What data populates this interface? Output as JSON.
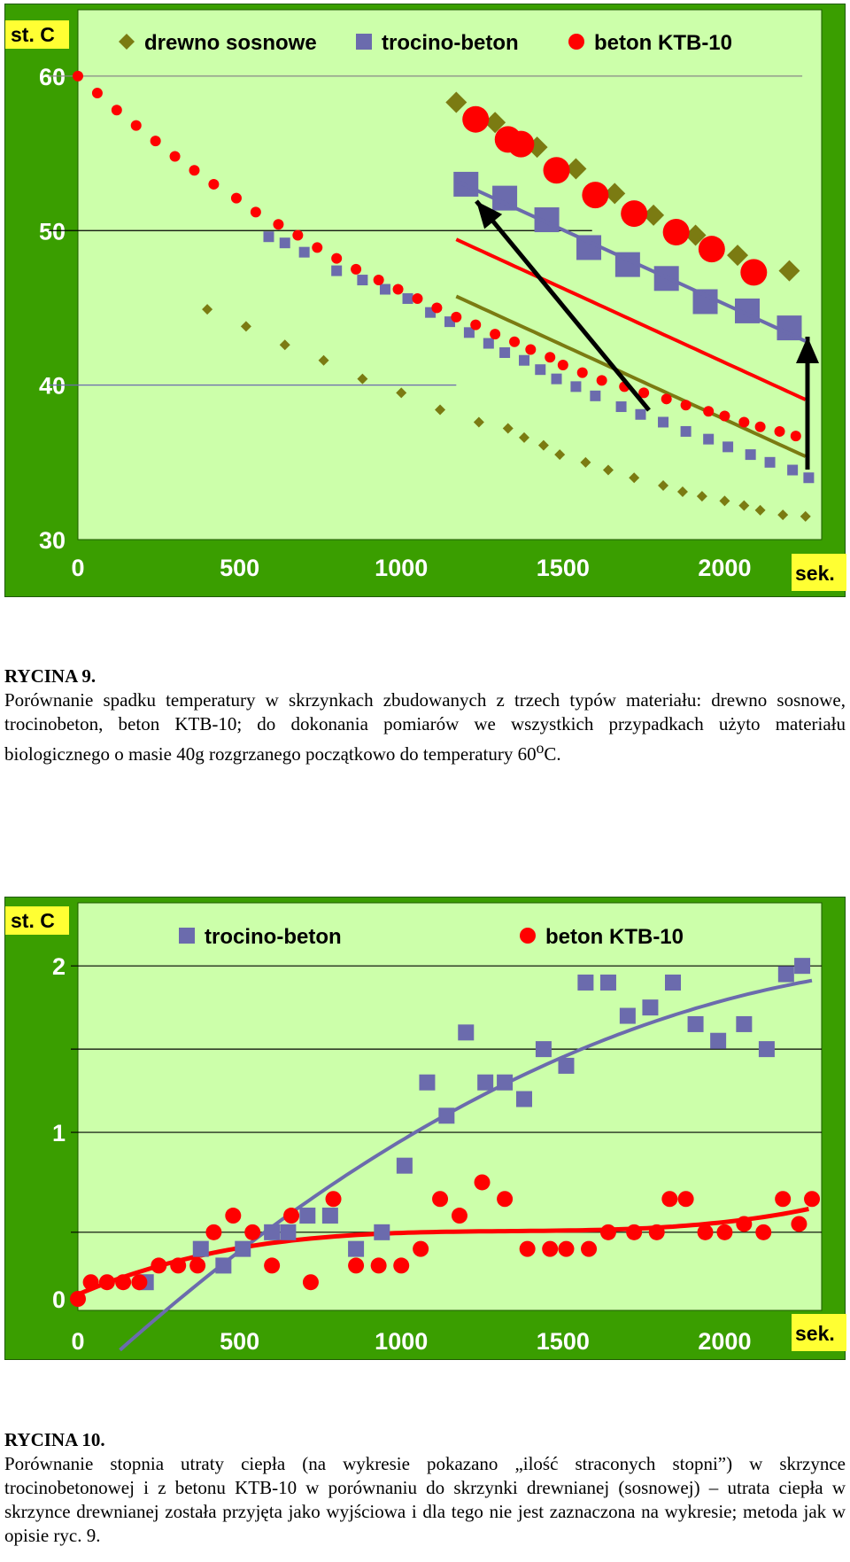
{
  "figures": [
    {
      "caption_title": "RYCINA 9.",
      "caption_pre": "Porównanie spadku temperatury w skrzynkach zbudowanych z trzech typów materiału: drewno sosnowe, trocinobeton, beton KTB-10; do dokonania pomiarów we wszystkich przypadkach użyto materiału biologicznego o masie 40g rozgrzanego początkowo do temperatury 60",
      "caption_sup": "o",
      "caption_post": "C."
    },
    {
      "caption_title": "RYCINA 10.",
      "caption_pre": "Porównanie stopnia utraty ciepła (na wykresie pokazano „ilość straconych stopni”) w skrzynce trocinobetonowej i z betonu KTB-10 w porównaniu do skrzynki drewnianej (sosnowej) – utrata ciepła w skrzynce drewnianej została przyjęta jako wyjściowa i dla tego nie jest zaznaczona na wykresie; metoda jak w opisie ryc. 9.",
      "caption_sup": "",
      "caption_post": ""
    }
  ],
  "chart_data": [
    {
      "type": "scatter",
      "y_unit_label": "st. C",
      "x_unit_label": "sek.",
      "xlim": [
        0,
        2300
      ],
      "ylim": [
        30,
        62
      ],
      "xticks": [
        0,
        500,
        1000,
        1500,
        2000
      ],
      "yticks": [
        30,
        40,
        50,
        60
      ],
      "legend_position": "top",
      "colors": {
        "background": "#3a9e00",
        "plot": "#ccffaa",
        "unit_label_bg": "#ffff33"
      },
      "series": [
        {
          "name": "drewno sosnowe",
          "marker": "diamond",
          "color": "#7b7b12",
          "x": [
            1170,
            1290,
            1420,
            1540,
            1660,
            1780,
            1910,
            2040,
            2200,
            400,
            520,
            640,
            760,
            880,
            1000,
            1120,
            1240,
            1330,
            1380,
            1440,
            1490,
            1570,
            1640,
            1720,
            1810,
            1870,
            1930,
            2000,
            2060,
            2110,
            2180,
            2250
          ],
          "y": [
            58.3,
            57.0,
            55.4,
            54.0,
            52.4,
            51.0,
            49.7,
            48.4,
            47.4,
            44.9,
            43.8,
            42.6,
            41.6,
            40.4,
            39.5,
            38.4,
            37.6,
            37.2,
            36.6,
            36.1,
            35.5,
            35.0,
            34.5,
            34.0,
            33.5,
            33.1,
            32.8,
            32.5,
            32.2,
            31.9,
            31.6,
            31.5
          ]
        },
        {
          "name": "trocino-beton",
          "marker": "square",
          "color": "#6b6bad",
          "x": [
            1200,
            1320,
            1450,
            1580,
            1700,
            1820,
            1940,
            2070,
            2200,
            590,
            640,
            700,
            800,
            880,
            950,
            1020,
            1090,
            1150,
            1210,
            1270,
            1320,
            1380,
            1430,
            1480,
            1540,
            1600,
            1680,
            1740,
            1810,
            1880,
            1950,
            2010,
            2080,
            2140,
            2210,
            2260
          ],
          "y": [
            53.0,
            52.1,
            50.7,
            48.9,
            47.8,
            46.9,
            45.4,
            44.8,
            43.7,
            49.6,
            49.2,
            48.6,
            47.4,
            46.8,
            46.2,
            45.6,
            44.7,
            44.1,
            43.4,
            42.7,
            42.1,
            41.6,
            41.0,
            40.4,
            39.9,
            39.3,
            38.6,
            38.1,
            37.6,
            37.0,
            36.5,
            36.0,
            35.5,
            35.0,
            34.5,
            34.0
          ]
        },
        {
          "name": "beton KTB-10",
          "marker": "circle",
          "color": "#ff0000",
          "x": [
            1230,
            1330,
            1370,
            1480,
            1600,
            1720,
            1850,
            1960,
            2090,
            0,
            60,
            120,
            180,
            240,
            300,
            360,
            420,
            490,
            550,
            620,
            680,
            740,
            800,
            860,
            930,
            990,
            1050,
            1110,
            1170,
            1230,
            1290,
            1350,
            1400,
            1460,
            1500,
            1560,
            1620,
            1690,
            1750,
            1820,
            1880,
            1950,
            2000,
            2060,
            2110,
            2170,
            2220
          ],
          "y": [
            57.2,
            55.9,
            55.6,
            53.9,
            52.3,
            51.1,
            49.9,
            48.8,
            47.3,
            60.0,
            58.9,
            57.8,
            56.8,
            55.8,
            54.8,
            53.9,
            53.0,
            52.1,
            51.2,
            50.4,
            49.7,
            48.9,
            48.2,
            47.5,
            46.8,
            46.2,
            45.6,
            45.0,
            44.4,
            43.9,
            43.3,
            42.8,
            42.3,
            41.8,
            41.3,
            40.8,
            40.3,
            39.9,
            39.5,
            39.1,
            38.7,
            38.3,
            38.0,
            37.6,
            37.3,
            37.0,
            36.7
          ]
        }
      ]
    },
    {
      "type": "scatter",
      "y_unit_label": "st. C",
      "x_unit_label": "sek.",
      "xlim": [
        0,
        2300
      ],
      "ylim": [
        0,
        2.4
      ],
      "xticks": [
        0,
        500,
        1000,
        1500,
        2000
      ],
      "yticks": [
        0,
        1,
        2
      ],
      "legend_position": "top",
      "colors": {
        "background": "#3a9e00",
        "plot": "#ccffaa",
        "unit_label_bg": "#ffff33"
      },
      "series": [
        {
          "name": "trocino-beton",
          "marker": "square",
          "color": "#6b6bad",
          "x": [
            210,
            380,
            450,
            510,
            600,
            650,
            710,
            780,
            860,
            940,
            1010,
            1080,
            1140,
            1200,
            1260,
            1320,
            1380,
            1440,
            1510,
            1570,
            1640,
            1700,
            1770,
            1840,
            1910,
            1980,
            2060,
            2130,
            2190,
            2240
          ],
          "y": [
            0.1,
            0.3,
            0.2,
            0.3,
            0.4,
            0.4,
            0.5,
            0.5,
            0.3,
            0.4,
            0.8,
            1.3,
            1.1,
            1.6,
            1.3,
            1.3,
            1.2,
            1.5,
            1.4,
            1.9,
            1.9,
            1.7,
            1.75,
            1.9,
            1.65,
            1.55,
            1.65,
            1.5,
            1.95,
            2.0
          ]
        },
        {
          "name": "beton KTB-10",
          "marker": "circle",
          "color": "#ff0000",
          "x": [
            0,
            40,
            90,
            140,
            190,
            250,
            310,
            370,
            420,
            480,
            540,
            600,
            660,
            720,
            790,
            860,
            930,
            1000,
            1060,
            1120,
            1180,
            1250,
            1320,
            1390,
            1460,
            1510,
            1580,
            1640,
            1720,
            1790,
            1830,
            1880,
            1940,
            2000,
            2060,
            2120,
            2180,
            2230,
            2270
          ],
          "y": [
            0.0,
            0.1,
            0.1,
            0.1,
            0.1,
            0.2,
            0.2,
            0.2,
            0.4,
            0.5,
            0.4,
            0.2,
            0.5,
            0.1,
            0.6,
            0.2,
            0.2,
            0.2,
            0.3,
            0.6,
            0.5,
            0.7,
            0.6,
            0.3,
            0.3,
            0.3,
            0.3,
            0.4,
            0.4,
            0.4,
            0.6,
            0.6,
            0.4,
            0.4,
            0.45,
            0.4,
            0.6,
            0.45,
            0.6
          ]
        }
      ]
    }
  ]
}
